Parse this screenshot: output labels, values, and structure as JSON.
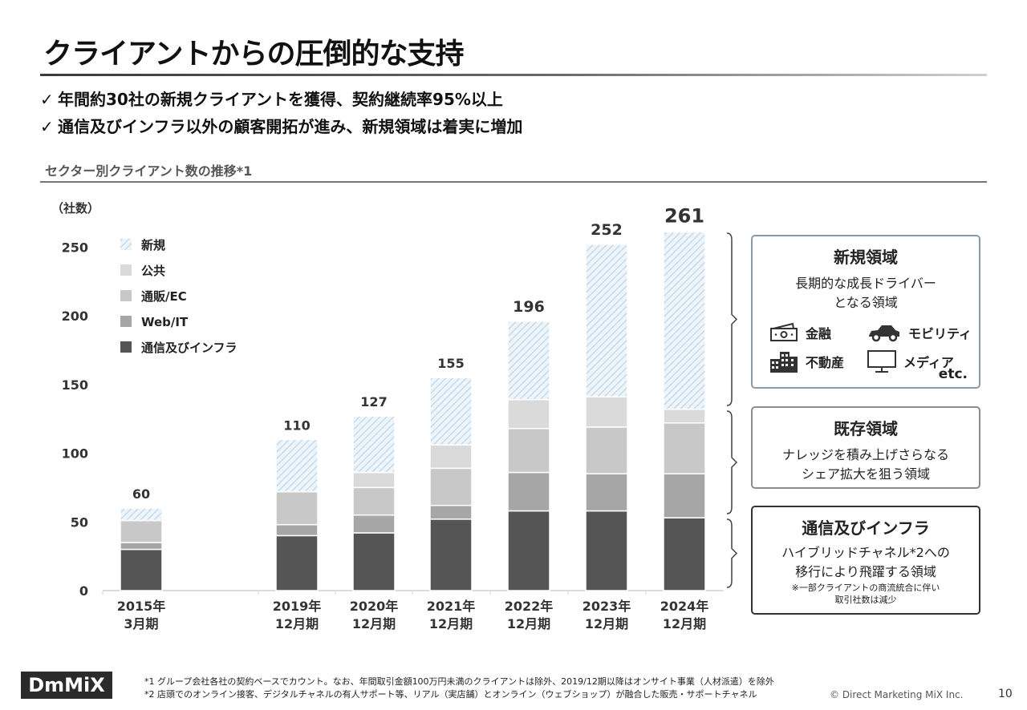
{
  "title": "クライアントからの圧倒的な支持",
  "bullets": [
    {
      "check": "✓",
      "text": "年間約30社の新規クライアントを獲得、契約継続率95%以上"
    },
    {
      "check": "✓",
      "text": "通信及びインフラ以外の顧客開拓が進み、新規領域は着実に増加"
    }
  ],
  "section_label": "セクター別クライアント数の推移*1",
  "chart_data": {
    "type": "bar",
    "stacked": true,
    "unit_label": "（社数）",
    "yticks": [
      0,
      50,
      100,
      150,
      200,
      250
    ],
    "ylim": [
      0,
      261
    ],
    "categories": [
      [
        "2015年",
        "3月期"
      ],
      [
        "2019年",
        "12月期"
      ],
      [
        "2020年",
        "12月期"
      ],
      [
        "2021年",
        "12月期"
      ],
      [
        "2022年",
        "12月期"
      ],
      [
        "2023年",
        "12月期"
      ],
      [
        "2024年",
        "12月期"
      ]
    ],
    "totals": [
      60,
      110,
      127,
      155,
      196,
      252,
      261
    ],
    "series": [
      {
        "name": "通信及びインフラ",
        "color": "#555555",
        "values": [
          30,
          40,
          42,
          52,
          58,
          58,
          53
        ]
      },
      {
        "name": "Web/IT",
        "color": "#a6a6a6",
        "values": [
          5,
          8,
          13,
          10,
          28,
          27,
          32
        ]
      },
      {
        "name": "通販/EC",
        "color": "#c8c8c8",
        "values": [
          16,
          24,
          20,
          27,
          32,
          34,
          37
        ]
      },
      {
        "name": "公共",
        "color": "#dadada",
        "values": [
          0,
          0,
          11,
          17,
          21,
          22,
          10
        ]
      },
      {
        "name": "新規",
        "color": "#d7e6f0",
        "values": [
          9,
          38,
          41,
          49,
          57,
          111,
          129
        ]
      }
    ],
    "legend_order": [
      "新規",
      "公共",
      "通販/EC",
      "Web/IT",
      "通信及びインフラ"
    ]
  },
  "panels": {
    "new": {
      "title": "新規領域",
      "desc1": "長期的な成長ドライバー",
      "desc2": "となる領域",
      "icons": [
        {
          "icon": "money-icon",
          "label": "金融"
        },
        {
          "icon": "car-icon",
          "label": "モビリティ"
        },
        {
          "icon": "building-icon",
          "label": "不動産"
        },
        {
          "icon": "monitor-icon",
          "label": "メディア"
        }
      ],
      "etc": "etc."
    },
    "existing": {
      "title": "既存領域",
      "desc1": "ナレッジを積み上げさらなる",
      "desc2": "シェア拡大を狙う領域"
    },
    "telecom": {
      "title": "通信及びインフラ",
      "desc1": "ハイブリッドチャネル*2への",
      "desc2": "移行により飛躍する領域",
      "note1": "※一部クライアントの商流統合に伴い",
      "note2": "取引社数は減少"
    }
  },
  "footnotes": [
    "*1 グループ会社各社の契約ベースでカウント。なお、年間取引金額100万円未満のクライアントは除外、2019/12期以降はオンサイト事業（人材派遣）を除外",
    "*2 店頭でのオンライン接客、デジタルチャネルの有人サポート等、リアル（実店舗）とオンライン（ウェブショップ）が融合した販売・サポートチャネル"
  ],
  "logo": "DmMiX",
  "copyright": "© Direct Marketing MiX Inc.",
  "page_number": "10"
}
